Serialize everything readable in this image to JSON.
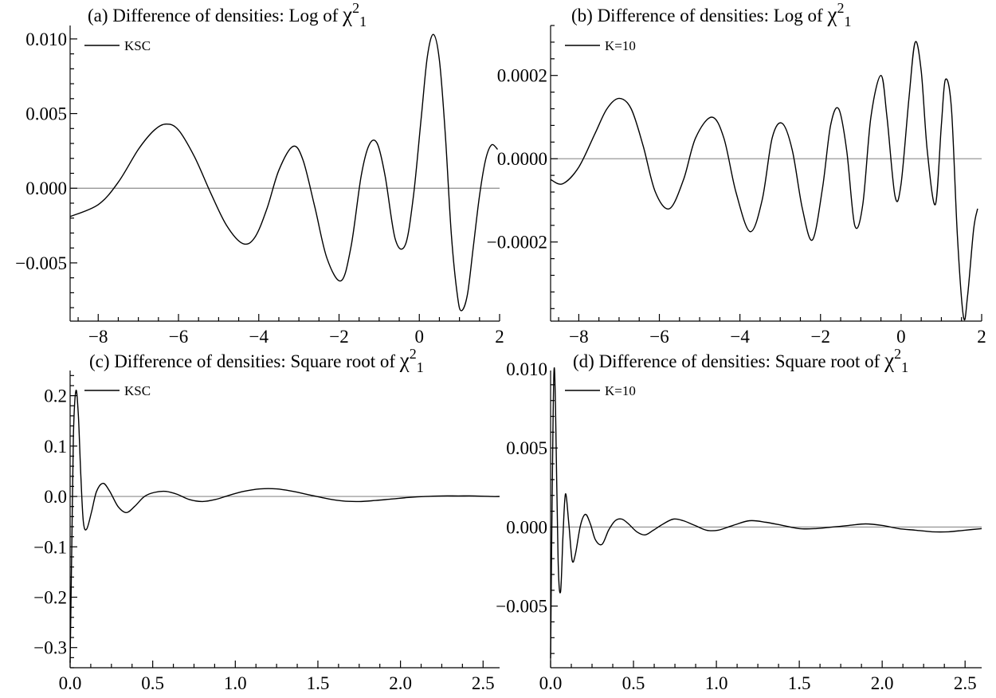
{
  "chart_data": [
    {
      "type": "line",
      "panel": "a",
      "title": "(a) Difference of  densities: Log of χ²₁",
      "title_parts": {
        "text": "(a) Difference of  densities: Log of ",
        "sym": "χ",
        "sup": "2",
        "sub": "1"
      },
      "xlabel": "",
      "ylabel": "",
      "xlim": [
        -8.7,
        2
      ],
      "ylim": [
        -0.0089,
        0.0109
      ],
      "grid": false,
      "legend_position": "top-left",
      "xticks": [
        -8,
        -6,
        -4,
        -2,
        0,
        2
      ],
      "xtick_labels": [
        "−8",
        "−6",
        "−4",
        "−2",
        "0",
        "2"
      ],
      "yticks": [
        -0.005,
        0,
        0.005,
        0.01
      ],
      "ytick_labels": [
        "−0.005",
        "0.000",
        "0.005",
        "0.010"
      ],
      "series": [
        {
          "name": "KSC",
          "x": [
            -8.7,
            -8.0,
            -7.5,
            -7.0,
            -6.6,
            -6.3,
            -6.0,
            -5.6,
            -5.2,
            -4.8,
            -4.4,
            -4.1,
            -3.8,
            -3.5,
            -3.15,
            -2.9,
            -2.6,
            -2.3,
            -1.95,
            -1.7,
            -1.45,
            -1.25,
            -1.05,
            -0.85,
            -0.6,
            -0.35,
            -0.15,
            0.05,
            0.2,
            0.35,
            0.5,
            0.65,
            0.8,
            0.95,
            1.05,
            1.2,
            1.35,
            1.5,
            1.65,
            1.8,
            1.95
          ],
          "y": [
            -0.0019,
            -0.0011,
            0.0004,
            0.0026,
            0.0039,
            0.0043,
            0.0039,
            0.0021,
            -0.0003,
            -0.0025,
            -0.0037,
            -0.0033,
            -0.0014,
            0.0012,
            0.0028,
            0.0019,
            -0.0013,
            -0.0047,
            -0.0062,
            -0.0039,
            0.0008,
            0.0029,
            0.003,
            0.0008,
            -0.0034,
            -0.0038,
            -0.0006,
            0.0048,
            0.0088,
            0.0103,
            0.0086,
            0.0035,
            -0.0032,
            -0.0072,
            -0.0082,
            -0.0071,
            -0.0038,
            -0.0005,
            0.0019,
            0.0029,
            0.0026
          ]
        }
      ]
    },
    {
      "type": "line",
      "panel": "b",
      "title": "(b) Difference of  densities: Log of χ²₁",
      "title_parts": {
        "text": "(b) Difference of  densities: Log of ",
        "sym": "χ",
        "sup": "2",
        "sub": "1"
      },
      "xlabel": "",
      "ylabel": "",
      "xlim": [
        -8.7,
        2
      ],
      "ylim": [
        -0.00039,
        0.00032
      ],
      "grid": false,
      "legend_position": "top-left",
      "xticks": [
        -8,
        -6,
        -4,
        -2,
        0,
        2
      ],
      "xtick_labels": [
        "−8",
        "−6",
        "−4",
        "−2",
        "0",
        "2"
      ],
      "yticks": [
        -0.0002,
        0,
        0.0002
      ],
      "ytick_labels": [
        "−0.0002",
        "0.0000",
        "0.0002"
      ],
      "series": [
        {
          "name": "K=10",
          "x": [
            -8.7,
            -8.4,
            -8.0,
            -7.6,
            -7.3,
            -7.0,
            -6.7,
            -6.4,
            -6.1,
            -5.75,
            -5.4,
            -5.1,
            -4.7,
            -4.4,
            -4.1,
            -3.75,
            -3.45,
            -3.2,
            -2.95,
            -2.7,
            -2.45,
            -2.2,
            -1.95,
            -1.75,
            -1.55,
            -1.35,
            -1.15,
            -0.95,
            -0.75,
            -0.5,
            -0.35,
            -0.15,
            0.0,
            0.2,
            0.35,
            0.5,
            0.65,
            0.85,
            1.0,
            1.1,
            1.25,
            1.4,
            1.55,
            1.65,
            1.8,
            1.9
          ],
          "y": [
            -5e-05,
            -6e-05,
            -2e-05,
            6e-05,
            0.00012,
            0.000145,
            0.00012,
            3e-05,
            -8e-05,
            -0.00012,
            -5e-05,
            5e-05,
            0.0001,
            5e-05,
            -8e-05,
            -0.000175,
            -0.0001,
            5e-05,
            8.5e-05,
            2e-05,
            -0.00012,
            -0.000195,
            -7e-05,
            8e-05,
            0.00012,
            2e-05,
            -0.00016,
            -0.00011,
            0.0001,
            0.0002,
            0.0001,
            -9e-05,
            -6e-05,
            0.00015,
            0.00028,
            0.00021,
            2e-05,
            -0.00011,
            8e-05,
            0.00019,
            0.00012,
            -0.00019,
            -0.00038,
            -0.00033,
            -0.00017,
            -0.00012
          ]
        }
      ]
    },
    {
      "type": "line",
      "panel": "c",
      "title": "(c) Difference of  densities: Square root of χ²₁",
      "title_parts": {
        "text": "(c) Difference of  densities: Square root of ",
        "sym": "χ",
        "sup": "2",
        "sub": "1"
      },
      "xlabel": "",
      "ylabel": "",
      "xlim": [
        0,
        2.6
      ],
      "ylim": [
        -0.34,
        0.25
      ],
      "grid": false,
      "legend_position": "top-left",
      "xticks": [
        0,
        0.5,
        1,
        1.5,
        2,
        2.5
      ],
      "xtick_labels": [
        "0.0",
        "0.5",
        "1.0",
        "1.5",
        "2.0",
        "2.5"
      ],
      "yticks": [
        -0.3,
        -0.2,
        -0.1,
        0,
        0.1,
        0.2
      ],
      "ytick_labels": [
        "−0.3",
        "−0.2",
        "−0.1",
        "0.0",
        "0.1",
        "0.2"
      ],
      "series": [
        {
          "name": "KSC",
          "x": [
            0.0,
            0.01,
            0.02,
            0.035,
            0.05,
            0.065,
            0.08,
            0.1,
            0.13,
            0.16,
            0.2,
            0.24,
            0.29,
            0.34,
            0.39,
            0.45,
            0.51,
            0.58,
            0.65,
            0.72,
            0.8,
            0.88,
            0.96,
            1.05,
            1.15,
            1.25,
            1.35,
            1.45,
            1.55,
            1.65,
            1.75,
            1.85,
            1.95,
            2.05,
            2.15,
            2.25,
            2.35,
            2.45,
            2.55,
            2.6
          ],
          "y": [
            -0.33,
            -0.1,
            0.12,
            0.21,
            0.16,
            0.04,
            -0.05,
            -0.065,
            -0.03,
            0.01,
            0.026,
            0.01,
            -0.02,
            -0.032,
            -0.02,
            0.0,
            0.008,
            0.01,
            0.004,
            -0.006,
            -0.01,
            -0.006,
            0.002,
            0.01,
            0.015,
            0.015,
            0.01,
            0.003,
            -0.004,
            -0.009,
            -0.01,
            -0.008,
            -0.005,
            -0.002,
            0.0,
            0.001,
            0.001,
            0.001,
            0.0,
            0.0
          ]
        }
      ]
    },
    {
      "type": "line",
      "panel": "d",
      "title": "(d) Difference of  densities: Square root of χ²₁",
      "title_parts": {
        "text": "(d) Difference of  densities: Square root of ",
        "sym": "χ",
        "sup": "2",
        "sub": "1"
      },
      "xlabel": "",
      "ylabel": "",
      "xlim": [
        0,
        2.6
      ],
      "ylim": [
        -0.0089,
        0.0099
      ],
      "grid": false,
      "legend_position": "top-left",
      "xticks": [
        0,
        0.5,
        1,
        1.5,
        2,
        2.5
      ],
      "xtick_labels": [
        "0.0",
        "0.5",
        "1.0",
        "1.5",
        "2.0",
        "2.5"
      ],
      "yticks": [
        -0.005,
        0,
        0.005,
        0.01
      ],
      "ytick_labels": [
        "−0.005",
        "0.000",
        "0.005",
        "0.010"
      ],
      "series": [
        {
          "name": "K=10",
          "x": [
            0.0,
            0.01,
            0.02,
            0.03,
            0.045,
            0.06,
            0.075,
            0.09,
            0.11,
            0.13,
            0.15,
            0.18,
            0.21,
            0.24,
            0.27,
            0.31,
            0.35,
            0.39,
            0.43,
            0.47,
            0.52,
            0.57,
            0.62,
            0.68,
            0.74,
            0.8,
            0.87,
            0.94,
            1.01,
            1.1,
            1.2,
            1.3,
            1.4,
            1.5,
            1.6,
            1.7,
            1.8,
            1.9,
            2.0,
            2.1,
            2.2,
            2.3,
            2.4,
            2.5,
            2.6
          ],
          "y": [
            -0.0083,
            0.0025,
            0.0098,
            0.0075,
            -0.002,
            -0.0041,
            -0.0005,
            0.0021,
            0.0002,
            -0.0021,
            -0.0017,
            0.0001,
            0.0008,
            0.0002,
            -0.0008,
            -0.0011,
            -0.0002,
            0.0004,
            0.0005,
            0.0002,
            -0.0003,
            -0.0005,
            -0.0002,
            0.0002,
            0.0005,
            0.0004,
            0.0001,
            -0.0002,
            -0.0002,
            0.0001,
            0.0004,
            0.0003,
            0.0001,
            -0.0001,
            -0.0001,
            0.0,
            0.0001,
            0.0002,
            0.0001,
            -0.0001,
            -0.0002,
            -0.0003,
            -0.0003,
            -0.0002,
            -0.0001
          ]
        }
      ]
    }
  ]
}
